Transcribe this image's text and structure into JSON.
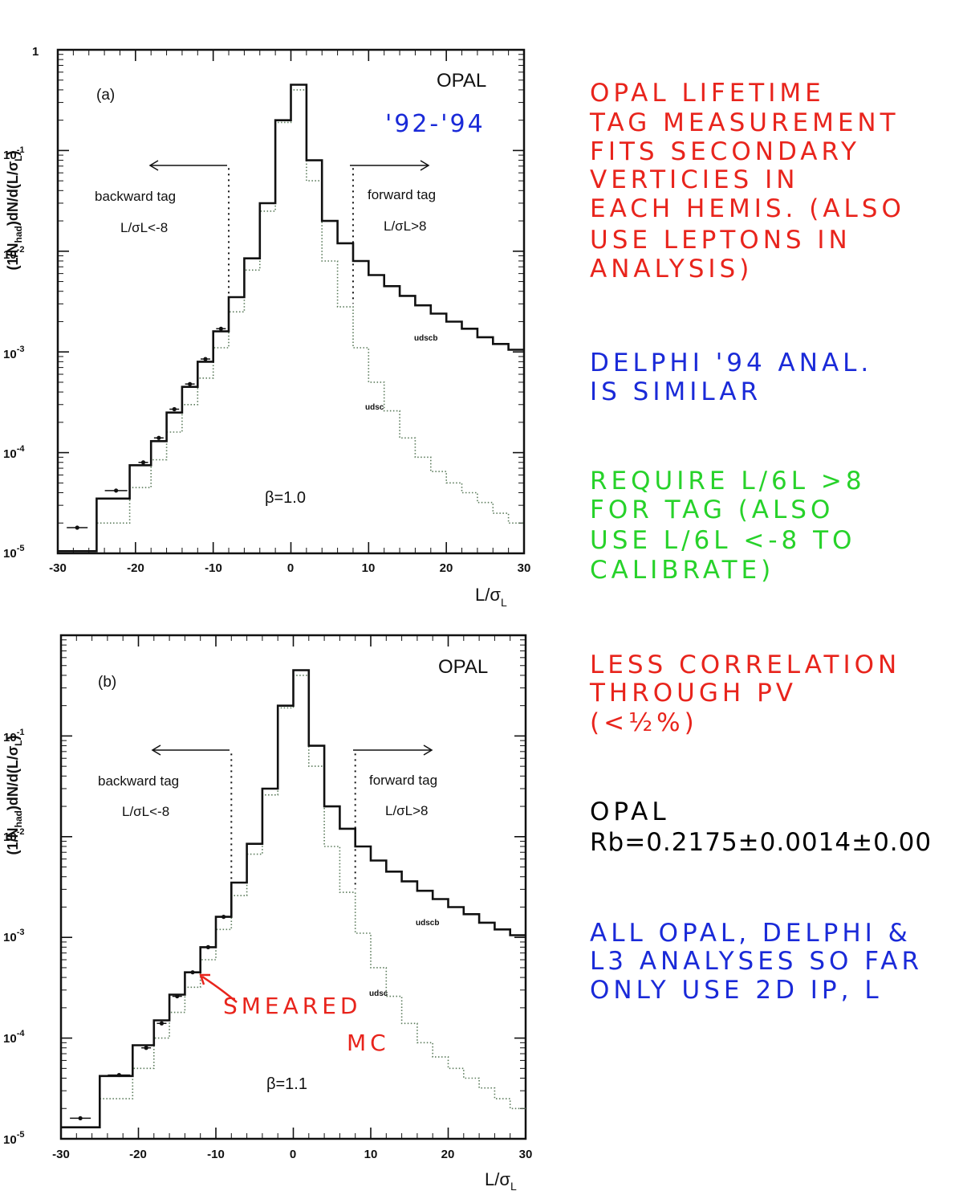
{
  "colors": {
    "note_red": "#e8241c",
    "note_blue": "#1a2ad8",
    "note_green": "#27d22a",
    "note_black": "#000000"
  },
  "chart_data": [
    {
      "type": "line",
      "panel_label": "(a)",
      "experiment_label": "OPAL",
      "years_annotation": "'92-'94",
      "beta_label": "β=1.0",
      "xlabel": "L/σL",
      "ylabel": "(1/Nhad)dN/d(L/σL)",
      "xlim": [
        -30,
        30
      ],
      "ylim": [
        1e-05,
        1
      ],
      "yscale": "log",
      "x_ticks": [
        "-30",
        "-20",
        "-10",
        "0",
        "10",
        "20",
        "30"
      ],
      "y_ticks": [
        "1",
        "10-1",
        "10-2",
        "10-3",
        "10-4",
        "10-5"
      ],
      "cut_lines": [
        -8,
        8
      ],
      "backward_tag": {
        "label": "backward tag",
        "cut": "L/σL<-8"
      },
      "forward_tag": {
        "label": "forward tag",
        "cut": "L/σL>8"
      },
      "series": [
        {
          "name": "udscb",
          "style": "solid",
          "x": [
            -27.5,
            -22.5,
            -19,
            -17,
            -15,
            -13,
            -11,
            -9,
            -7,
            -5,
            -3,
            -1,
            1,
            3,
            5,
            7,
            9,
            11,
            13,
            15,
            17,
            19,
            21,
            23,
            25,
            27,
            29
          ],
          "y": [
            1.05e-05,
            3.5e-05,
            7.5e-05,
            0.00013,
            0.00025,
            0.00045,
            0.0008,
            0.0016,
            0.0035,
            0.0085,
            0.03,
            0.2,
            0.45,
            0.08,
            0.02,
            0.012,
            0.008,
            0.0058,
            0.0045,
            0.0036,
            0.0029,
            0.0024,
            0.002,
            0.0017,
            0.0014,
            0.0012,
            0.00105
          ]
        },
        {
          "name": "udsc",
          "style": "dotted",
          "x": [
            -27.5,
            -22.5,
            -19,
            -17,
            -15,
            -13,
            -11,
            -9,
            -7,
            -5,
            -3,
            -1,
            1,
            3,
            5,
            7,
            9,
            11,
            13,
            15,
            17,
            19,
            21,
            23,
            25,
            27,
            29
          ],
          "y": [
            1.05e-05,
            2e-05,
            4.5e-05,
            8.5e-05,
            0.00016,
            0.0003,
            0.00055,
            0.0011,
            0.0025,
            0.0065,
            0.025,
            0.19,
            0.4,
            0.05,
            0.008,
            0.0028,
            0.0011,
            0.0005,
            0.00026,
            0.00014,
            9e-05,
            6.5e-05,
            5e-05,
            4e-05,
            3.2e-05,
            2.5e-05,
            2e-05
          ]
        }
      ],
      "data_points": {
        "x": [
          -27.5,
          -22.5,
          -19,
          -17,
          -15,
          -13,
          -11,
          -9
        ],
        "y": [
          1.8e-05,
          4.2e-05,
          8e-05,
          0.00014,
          0.00027,
          0.00048,
          0.00085,
          0.0017
        ]
      }
    },
    {
      "type": "line",
      "panel_label": "(b)",
      "experiment_label": "OPAL",
      "beta_label": "β=1.1",
      "xlabel": "L/σL",
      "ylabel": "(1/Nhad)dN/d(L/σL)",
      "xlim": [
        -30,
        30
      ],
      "ylim": [
        1e-05,
        1
      ],
      "yscale": "log",
      "x_ticks": [
        "-30",
        "-20",
        "-10",
        "0",
        "10",
        "20",
        "30"
      ],
      "y_ticks": [
        "1",
        "10-1",
        "10-2",
        "10-3",
        "10-4",
        "10-5"
      ],
      "cut_lines": [
        -8,
        8
      ],
      "backward_tag": {
        "label": "backward tag",
        "cut": "L/σL<-8"
      },
      "forward_tag": {
        "label": "forward tag",
        "cut": "L/σL>8"
      },
      "smeared_annotation": [
        "SMEARED",
        "MC"
      ],
      "series": [
        {
          "name": "udscb",
          "style": "solid",
          "x": [
            -27.5,
            -22.5,
            -19,
            -17,
            -15,
            -13,
            -11,
            -9,
            -7,
            -5,
            -3,
            -1,
            1,
            3,
            5,
            7,
            9,
            11,
            13,
            15,
            17,
            19,
            21,
            23,
            25,
            27,
            29
          ],
          "y": [
            1.3e-05,
            4.2e-05,
            8.5e-05,
            0.00015,
            0.00027,
            0.00045,
            0.0008,
            0.0016,
            0.0035,
            0.0085,
            0.03,
            0.2,
            0.45,
            0.08,
            0.02,
            0.012,
            0.008,
            0.0058,
            0.0045,
            0.0036,
            0.0029,
            0.0024,
            0.002,
            0.0017,
            0.0014,
            0.0012,
            0.00105
          ]
        },
        {
          "name": "udsc",
          "style": "dotted",
          "x": [
            -27.5,
            -22.5,
            -19,
            -17,
            -15,
            -13,
            -11,
            -9,
            -7,
            -5,
            -3,
            -1,
            1,
            3,
            5,
            7,
            9,
            11,
            13,
            15,
            17,
            19,
            21,
            23,
            25,
            27,
            29
          ],
          "y": [
            1.3e-05,
            2.5e-05,
            5e-05,
            0.0001,
            0.00018,
            0.00032,
            0.0006,
            0.0012,
            0.0026,
            0.0067,
            0.026,
            0.19,
            0.4,
            0.05,
            0.008,
            0.0028,
            0.0011,
            0.0005,
            0.00026,
            0.00014,
            9e-05,
            6.5e-05,
            5e-05,
            4e-05,
            3.2e-05,
            2.5e-05,
            2e-05
          ]
        }
      ],
      "data_points": {
        "x": [
          -27.5,
          -22.5,
          -19,
          -17,
          -15,
          -13,
          -11,
          -9
        ],
        "y": [
          1.6e-05,
          4.3e-05,
          8e-05,
          0.00014,
          0.00026,
          0.00045,
          0.0008,
          0.0016
        ]
      }
    }
  ],
  "notes": [
    {
      "color": "#e8241c",
      "lines": [
        "OPAL  LIFETIME",
        "TAG  MEASUREMENT",
        "FITS   SECONDARY",
        "VERTICIES   IN",
        "EACH  HEMIS. (ALSO",
        "USE  LEPTONS  IN",
        "ANALYSIS)"
      ]
    },
    {
      "color": "#1a2ad8",
      "lines": [
        "DELPHI   '94  ANAL.",
        "IS  SIMILAR"
      ]
    },
    {
      "color": "#27d22a",
      "lines": [
        "REQUIRE  L/6L >8",
        "FOR  TAG  (ALSO",
        "USE  L/6L <-8  TO",
        "CALIBRATE)"
      ]
    },
    {
      "color": "#e8241c",
      "lines": [
        "LESS  CORRELATION",
        "THROUGH  PV",
        "(<½%)"
      ]
    },
    {
      "color": "#000000",
      "lines": [
        "OPAL",
        "Rb=0.2175±0.0014±0.00"
      ]
    },
    {
      "color": "#1a2ad8",
      "lines": [
        "ALL  OPAL, DELPHI &",
        "L3  ANALYSES  SO  FAR",
        "ONLY  USE  2D  IP, L"
      ]
    }
  ]
}
